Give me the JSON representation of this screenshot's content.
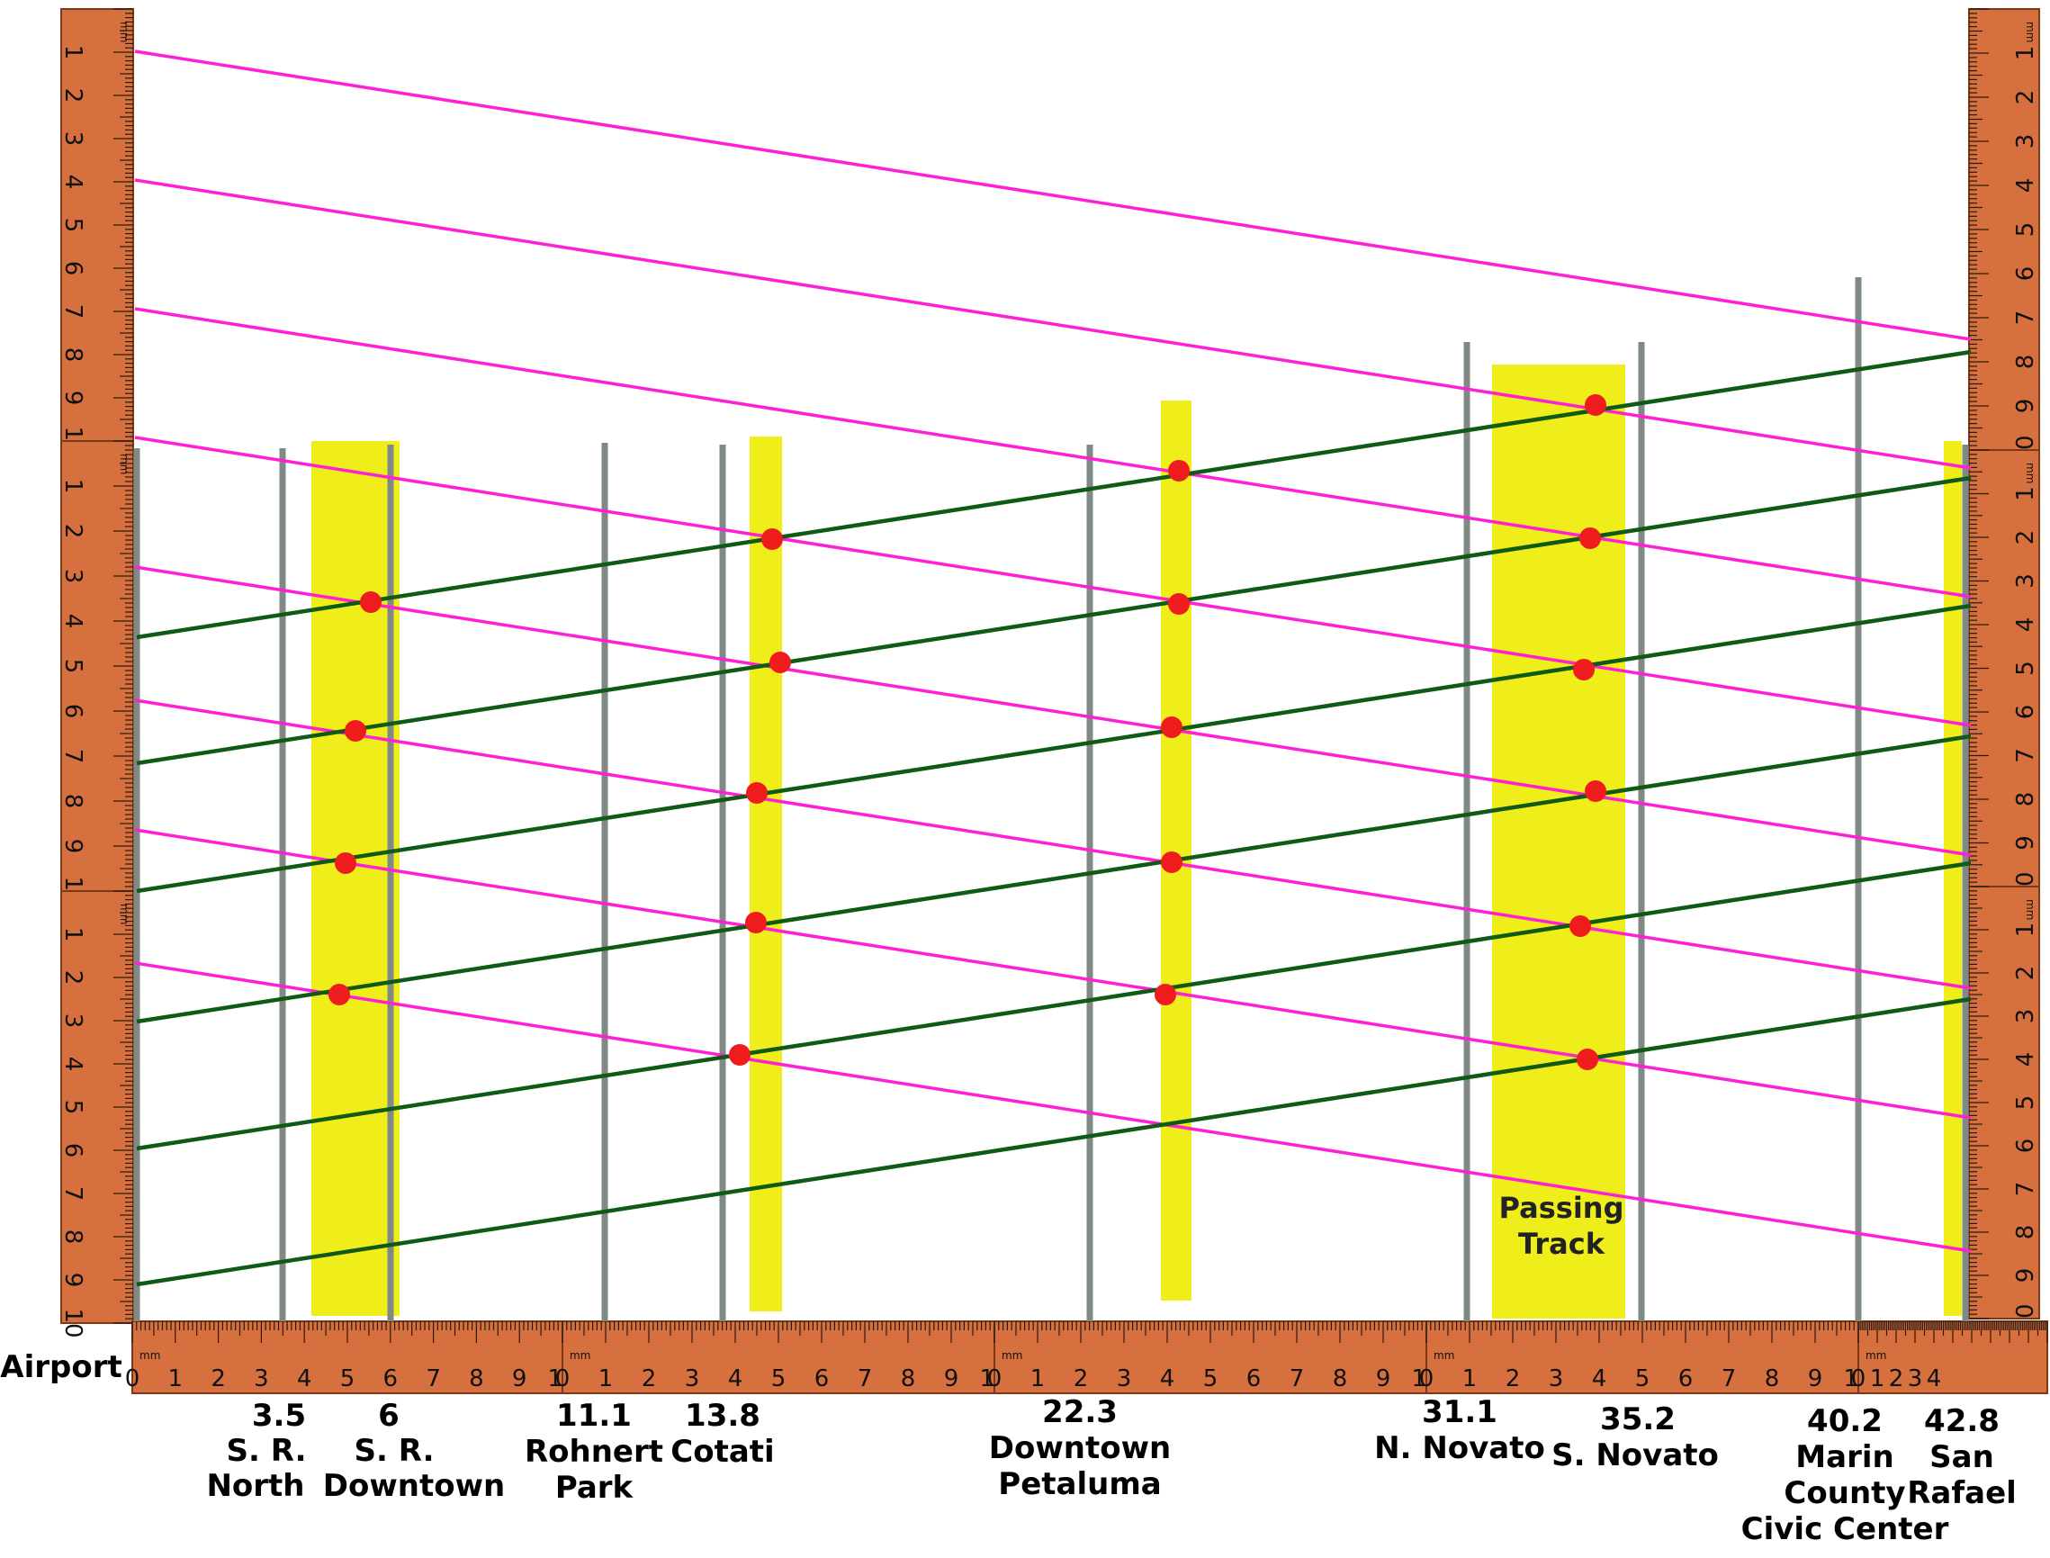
{
  "endpoint_label": "Airport",
  "stations": [
    {
      "milepost": "3.5",
      "name_lines": [
        "S. R.",
        "North"
      ]
    },
    {
      "milepost": "6",
      "name_lines": [
        "S. R.",
        "Downtown"
      ]
    },
    {
      "milepost": "11.1",
      "name_lines": [
        "Rohnert",
        "Park"
      ]
    },
    {
      "milepost": "13.8",
      "name_lines": [
        "Cotati"
      ]
    },
    {
      "milepost": "22.3",
      "name_lines": [
        "Downtown",
        "Petaluma"
      ]
    },
    {
      "milepost": "31.1",
      "name_lines": [
        "N. Novato"
      ]
    },
    {
      "milepost": "35.2",
      "name_lines": [
        "S. Novato"
      ]
    },
    {
      "milepost": "40.2",
      "name_lines": [
        "Marin",
        "County",
        "Civic Center"
      ]
    },
    {
      "milepost": "42.8",
      "name_lines": [
        "San",
        "Rafael"
      ]
    }
  ],
  "passing_track_label": [
    "Passing",
    "Track"
  ],
  "ruler_unit": "mm",
  "colors": {
    "southbound_train": "#ff1fd5",
    "northbound_train": "#0f5a14",
    "passing_zone": "#f0ee1a",
    "station_line": "#7f8a86",
    "meet_point": "#ee1c1c",
    "ruler": "#d7703f"
  },
  "icons": {
    "meet_point": "red-dot",
    "ruler": "wooden-mm-ruler"
  }
}
